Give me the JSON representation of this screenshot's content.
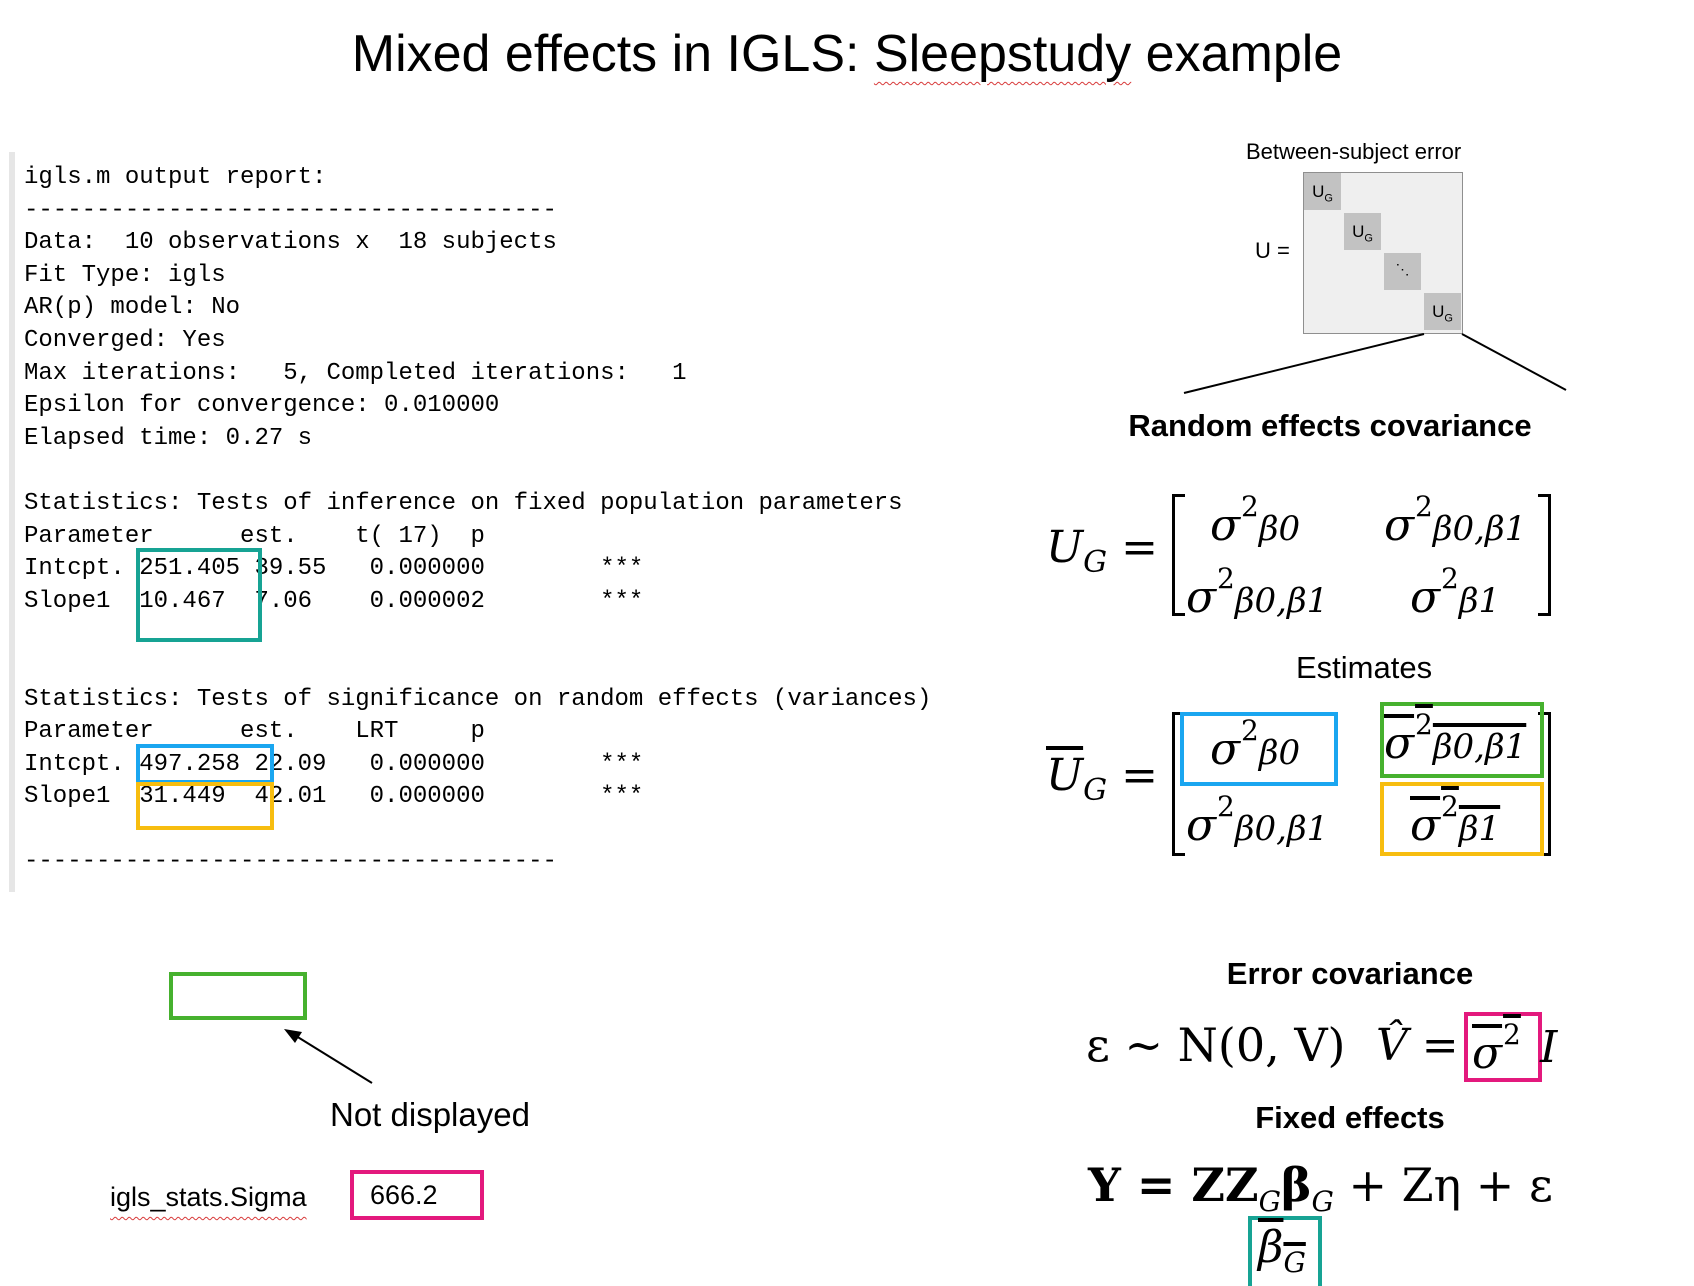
{
  "title_parts": [
    "Mixed effects in IGLS: ",
    "Sleepstudy",
    " example"
  ],
  "report_lines": [
    "igls.m output report:",
    "-------------------------------------",
    "Data:  10 observations x  18 subjects",
    "Fit Type: igls",
    "AR(p) model: No",
    "Converged: Yes",
    "Max iterations:   5, Completed iterations:   1",
    "Epsilon for convergence: 0.010000",
    "Elapsed time: 0.27 s",
    "",
    "Statistics: Tests of inference on fixed population parameters",
    "Parameter      est.    t( 17)  p",
    "Intcpt. 251.405 39.55   0.000000        ***",
    "Slope1  10.467  7.06    0.000002        ***",
    "",
    "",
    "Statistics: Tests of significance on random effects (variances)",
    "Parameter      est.    LRT     p",
    "Intcpt. 497.258 22.09   0.000000        ***",
    "Slope1  31.449  42.01   0.000000        ***",
    "",
    "-------------------------------------"
  ],
  "diagram": {
    "caption": "Between-subject error",
    "u_label": "U =",
    "cell_main": "U",
    "cell_sub": "G",
    "cell_dots": "⋱"
  },
  "headings": {
    "random_effects": "Random effects covariance",
    "estimates": "Estimates",
    "error_covariance": "Error covariance",
    "fixed_effects": "Fixed effects"
  },
  "formulas": {
    "ug_lhs": "U",
    "ug_sub": "G",
    "equals": "=",
    "sigma": "σ",
    "sq": "2",
    "b0": "β0",
    "b01": "β0,β1",
    "b1": "β1",
    "error_model": "ε ~ N(0, V)",
    "vhat": "V̂ =",
    "ident": "I",
    "fixed_model": "Y = ZZ",
    "fixed_sub_g": "G",
    "fixed_beta": "β",
    "fixed_tail": " + Zη + ε",
    "beta_hat": "β",
    "beta_hat_sub": "G"
  },
  "annotations": {
    "not_displayed": "Not displayed",
    "sigma_label": "igls_stats.Sigma",
    "sigma_value": "666.2"
  },
  "colors": {
    "teal": "#17a394",
    "blue": "#1aa6f0",
    "gold": "#f7bd0f",
    "green": "#46b12e",
    "pink": "#e3197d"
  }
}
